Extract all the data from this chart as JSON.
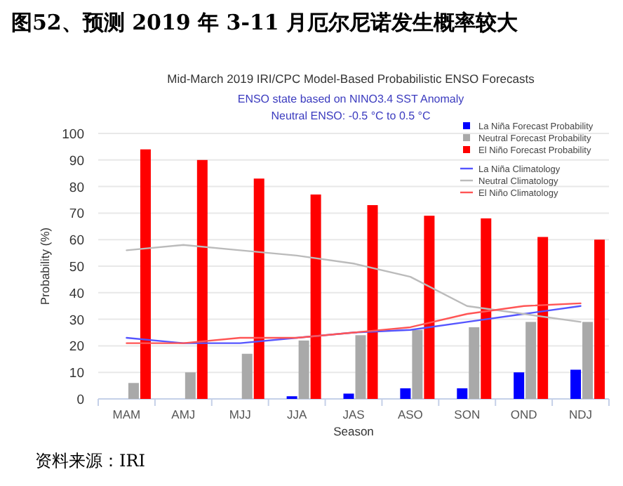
{
  "chart_data": {
    "type": "bar",
    "title": "图52、预测 2019 年 3-11 月厄尔尼诺发生概率较大",
    "subtitle": "Mid-March 2019 IRI/CPC Model-Based Probabilistic ENSO Forecasts",
    "annotations": [
      "ENSO state based on NINO3.4 SST Anomaly",
      "Neutral ENSO: -0.5 °C to 0.5 °C",
      "资料来源：IRI"
    ],
    "xlabel": "Season",
    "ylabel": "Probability (%)",
    "categories": [
      "MAM",
      "AMJ",
      "MJJ",
      "JJA",
      "JAS",
      "ASO",
      "SON",
      "OND",
      "NDJ"
    ],
    "ylim": [
      0,
      100
    ],
    "yticks": [
      0,
      10,
      20,
      30,
      40,
      50,
      60,
      70,
      80,
      90,
      100
    ],
    "grid": "y",
    "legend": "top right",
    "series": [
      {
        "name": "La Niña Forecast Probability",
        "color": "#0000ff",
        "values": [
          0,
          0,
          0,
          1,
          2,
          4,
          4,
          10,
          11
        ]
      },
      {
        "name": "Neutral Forecast Probability",
        "color": "#a9a9a9",
        "values": [
          6,
          10,
          17,
          22,
          24,
          26,
          27,
          29,
          29
        ]
      },
      {
        "name": "El Niño Forecast Probability",
        "color": "#ff0000",
        "values": [
          94,
          90,
          83,
          77,
          73,
          69,
          68,
          61,
          60
        ]
      },
      {
        "name": "La Niña Climatology",
        "type": "line",
        "color": "#5555ff",
        "values": [
          23,
          21,
          21,
          23,
          25,
          26,
          29,
          32,
          35
        ]
      },
      {
        "name": "Neutral Climatology",
        "type": "line",
        "color": "#bbbbbb",
        "values": [
          56,
          58,
          56,
          54,
          51,
          46,
          35,
          32,
          29
        ]
      },
      {
        "name": "El Niño Climatology",
        "type": "line",
        "color": "#ff5555",
        "values": [
          21,
          21,
          23,
          23,
          25,
          27,
          32,
          35,
          36
        ]
      }
    ]
  }
}
